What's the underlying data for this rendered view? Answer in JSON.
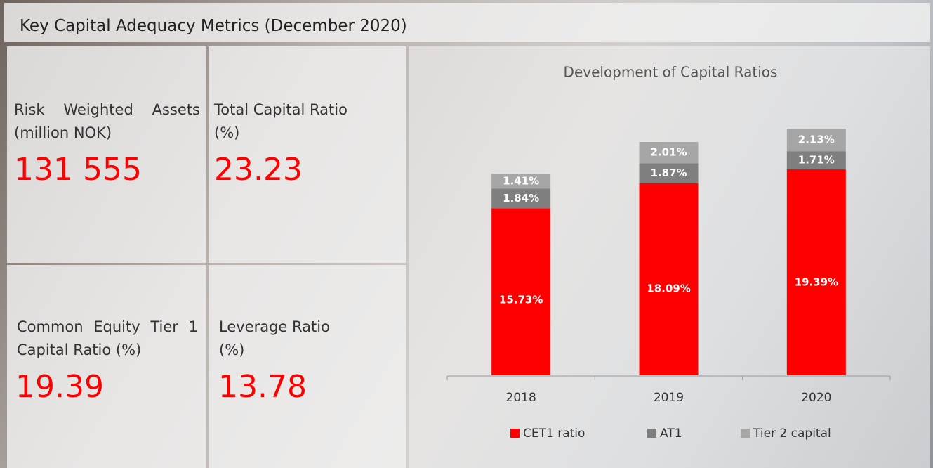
{
  "header": {
    "title": "Key Capital Adequacy Metrics (December 2020)"
  },
  "kpis": [
    {
      "label": "Risk Weighted Assets (million NOK)",
      "value": "131 555"
    },
    {
      "label": "Total Capital Ratio (%)",
      "value": "23.23"
    },
    {
      "label": "Common Equity Tier 1 Capital Ratio (%)",
      "value": "19.39"
    },
    {
      "label": "Leverage Ratio (%)",
      "value": "13.78"
    }
  ],
  "chart_data": {
    "type": "stacked-bar",
    "title": "Development of Capital Ratios",
    "categories": [
      "2018",
      "2019",
      "2020"
    ],
    "series": [
      {
        "name": "CET1 ratio",
        "color": "#ff0000",
        "values": [
          15.73,
          18.09,
          19.39
        ],
        "value_labels": [
          "15.73%",
          "18.09%",
          "19.39%"
        ]
      },
      {
        "name": "AT1",
        "color": "#7f7f7f",
        "values": [
          1.84,
          1.87,
          1.71
        ],
        "value_labels": [
          "1.84%",
          "1.87%",
          "1.71%"
        ]
      },
      {
        "name": "Tier 2 capital",
        "color": "#a6a6a6",
        "values": [
          1.41,
          2.01,
          2.13
        ],
        "value_labels": [
          "1.41%",
          "2.01%",
          "2.13%"
        ]
      }
    ],
    "legend": "bottom"
  }
}
